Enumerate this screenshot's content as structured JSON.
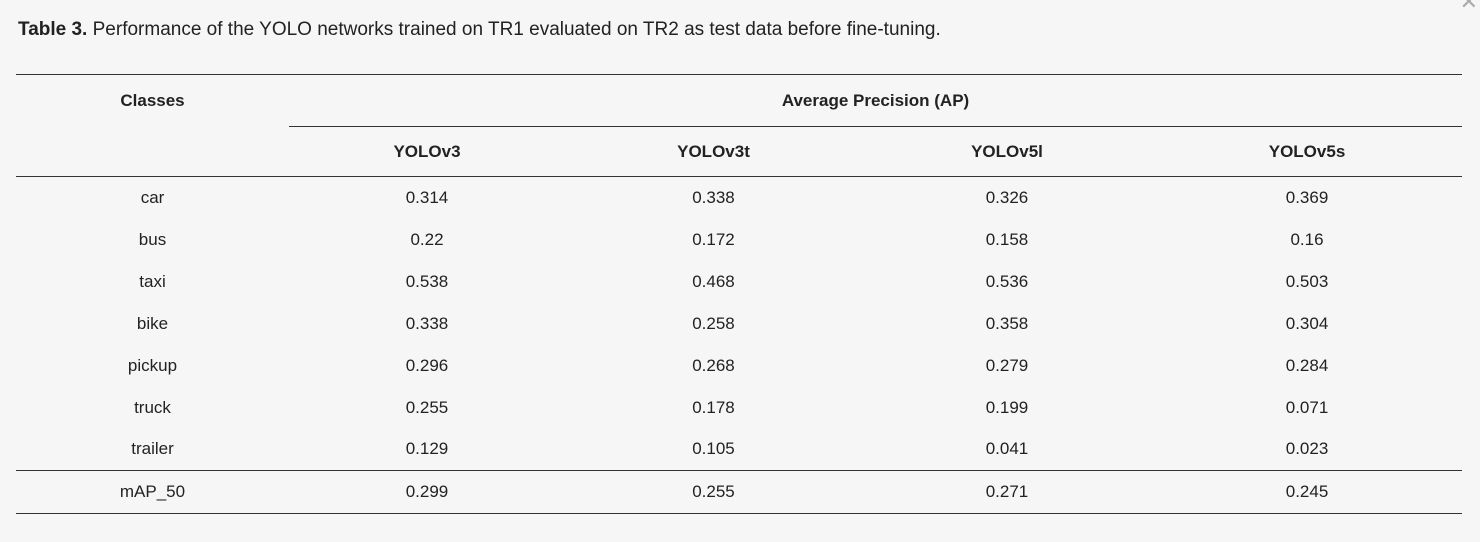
{
  "caption": {
    "label": "Table 3.",
    "text": " Performance of the YOLO networks trained on TR1 evaluated on TR2 as test data before fine-tuning."
  },
  "close_glyph": "✕",
  "table": {
    "classes_header": "Classes",
    "group_header": "Average Precision (AP)",
    "columns": [
      "YOLOv3",
      "YOLOv3t",
      "YOLOv5l",
      "YOLOv5s"
    ],
    "rows": [
      {
        "cls": "car",
        "values": [
          "0.314",
          "0.338",
          "0.326",
          "0.369"
        ]
      },
      {
        "cls": "bus",
        "values": [
          "0.22",
          "0.172",
          "0.158",
          "0.16"
        ]
      },
      {
        "cls": "taxi",
        "values": [
          "0.538",
          "0.468",
          "0.536",
          "0.503"
        ]
      },
      {
        "cls": "bike",
        "values": [
          "0.338",
          "0.258",
          "0.358",
          "0.304"
        ]
      },
      {
        "cls": "pickup",
        "values": [
          "0.296",
          "0.268",
          "0.279",
          "0.284"
        ]
      },
      {
        "cls": "truck",
        "values": [
          "0.255",
          "0.178",
          "0.199",
          "0.071"
        ]
      },
      {
        "cls": "trailer",
        "values": [
          "0.129",
          "0.105",
          "0.041",
          "0.023"
        ]
      }
    ],
    "summary": {
      "cls": "mAP_50",
      "values": [
        "0.299",
        "0.255",
        "0.271",
        "0.245"
      ]
    }
  }
}
